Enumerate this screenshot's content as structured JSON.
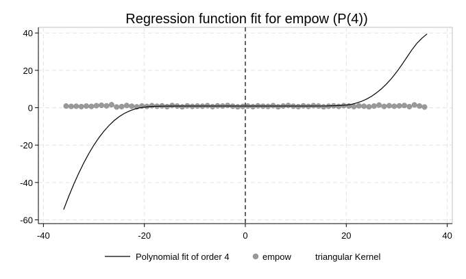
{
  "chart_data": {
    "type": "scatter",
    "title": "Regression function fit for empow (P(4))",
    "xlabel": "",
    "ylabel": "",
    "xlim": [
      -41,
      41
    ],
    "ylim": [
      -62,
      43
    ],
    "xticks": [
      -40,
      -20,
      0,
      20,
      40
    ],
    "yticks": [
      40,
      20,
      0,
      -20,
      -40,
      -60
    ],
    "grid": true,
    "cutoff": 0,
    "legend_position": "bottom",
    "legend": [
      {
        "label": "Polynomial fit of order 4",
        "kind": "line",
        "color": "#000000"
      },
      {
        "label": "empow",
        "kind": "marker",
        "color": "#999999"
      },
      {
        "label": "triangular Kernel",
        "kind": "none",
        "color": ""
      }
    ],
    "series": [
      {
        "name": "Polynomial fit of order 4",
        "kind": "line",
        "color": "#000000",
        "points": [
          [
            -36,
            -54.5
          ],
          [
            -35,
            -47.5
          ],
          [
            -34,
            -41.0
          ],
          [
            -33,
            -35.0
          ],
          [
            -32,
            -29.5
          ],
          [
            -31,
            -24.5
          ],
          [
            -30,
            -20.0
          ],
          [
            -29,
            -16.0
          ],
          [
            -28,
            -12.5
          ],
          [
            -27,
            -9.5
          ],
          [
            -26,
            -6.9
          ],
          [
            -25,
            -4.8
          ],
          [
            -24,
            -3.1
          ],
          [
            -23,
            -1.8
          ],
          [
            -22,
            -0.8
          ],
          [
            -21,
            -0.1
          ],
          [
            -20,
            0.3
          ],
          [
            -19,
            0.6
          ],
          [
            -18,
            0.75
          ],
          [
            -16,
            0.85
          ],
          [
            -12,
            0.9
          ],
          [
            -8,
            0.9
          ],
          [
            -4,
            0.9
          ],
          [
            0,
            0.9
          ]
        ]
      },
      {
        "name": "Polynomial fit of order 4",
        "kind": "line",
        "color": "#000000",
        "points": [
          [
            0,
            0.9
          ],
          [
            4,
            0.9
          ],
          [
            8,
            0.9
          ],
          [
            12,
            0.9
          ],
          [
            16,
            0.95
          ],
          [
            18,
            1.1
          ],
          [
            20,
            1.4
          ],
          [
            21,
            1.8
          ],
          [
            22,
            2.5
          ],
          [
            23,
            3.4
          ],
          [
            24,
            4.6
          ],
          [
            25,
            6.1
          ],
          [
            26,
            8.0
          ],
          [
            27,
            10.2
          ],
          [
            28,
            12.8
          ],
          [
            29,
            15.8
          ],
          [
            30,
            19.2
          ],
          [
            31,
            23.0
          ],
          [
            32,
            27.0
          ],
          [
            33,
            31.0
          ],
          [
            34,
            34.5
          ],
          [
            35,
            37.2
          ],
          [
            36,
            39.5
          ]
        ]
      },
      {
        "name": "empow",
        "kind": "marker",
        "color": "#999999",
        "points": [
          [
            -35.5,
            0.9
          ],
          [
            -34.5,
            0.7
          ],
          [
            -33.5,
            0.8
          ],
          [
            -32.5,
            0.6
          ],
          [
            -31.5,
            0.9
          ],
          [
            -30.5,
            0.7
          ],
          [
            -29.5,
            1.1
          ],
          [
            -28.5,
            1.3
          ],
          [
            -27.5,
            1.0
          ],
          [
            -26.5,
            1.6
          ],
          [
            -25.5,
            0.4
          ],
          [
            -24.5,
            0.6
          ],
          [
            -23.5,
            1.2
          ],
          [
            -22.5,
            0.8
          ],
          [
            -21.5,
            0.5
          ],
          [
            -20.5,
            0.9
          ],
          [
            -19.5,
            0.7
          ],
          [
            -18.5,
            1.1
          ],
          [
            -17.5,
            0.8
          ],
          [
            -16.5,
            1.0
          ],
          [
            -15.5,
            0.6
          ],
          [
            -14.5,
            1.2
          ],
          [
            -13.5,
            0.9
          ],
          [
            -12.5,
            0.5
          ],
          [
            -11.5,
            1.0
          ],
          [
            -10.5,
            0.7
          ],
          [
            -9.5,
            0.9
          ],
          [
            -8.5,
            0.8
          ],
          [
            -7.5,
            1.1
          ],
          [
            -6.5,
            0.6
          ],
          [
            -5.5,
            1.0
          ],
          [
            -4.5,
            0.9
          ],
          [
            -3.5,
            1.2
          ],
          [
            -2.5,
            0.8
          ],
          [
            -1.5,
            0.5
          ],
          [
            -0.5,
            0.7
          ],
          [
            0.5,
            0.9
          ],
          [
            1.5,
            0.6
          ],
          [
            2.5,
            1.0
          ],
          [
            3.5,
            0.8
          ],
          [
            4.5,
            0.7
          ],
          [
            5.5,
            1.1
          ],
          [
            6.5,
            0.5
          ],
          [
            7.5,
            0.9
          ],
          [
            8.5,
            1.2
          ],
          [
            9.5,
            0.8
          ],
          [
            10.5,
            0.6
          ],
          [
            11.5,
            1.0
          ],
          [
            12.5,
            0.7
          ],
          [
            13.5,
            1.1
          ],
          [
            14.5,
            0.9
          ],
          [
            15.5,
            0.5
          ],
          [
            16.5,
            0.8
          ],
          [
            17.5,
            1.0
          ],
          [
            18.5,
            0.7
          ],
          [
            19.5,
            1.1
          ],
          [
            20.5,
            0.9
          ],
          [
            21.5,
            0.6
          ],
          [
            22.5,
            1.0
          ],
          [
            23.5,
            0.8
          ],
          [
            24.5,
            0.5
          ],
          [
            25.5,
            0.9
          ],
          [
            26.5,
            1.4
          ],
          [
            27.5,
            0.7
          ],
          [
            28.5,
            1.1
          ],
          [
            29.5,
            0.8
          ],
          [
            30.5,
            1.0
          ],
          [
            31.5,
            1.2
          ],
          [
            32.5,
            0.6
          ],
          [
            33.5,
            1.5
          ],
          [
            34.5,
            0.9
          ],
          [
            35.5,
            0.4
          ]
        ]
      }
    ]
  }
}
